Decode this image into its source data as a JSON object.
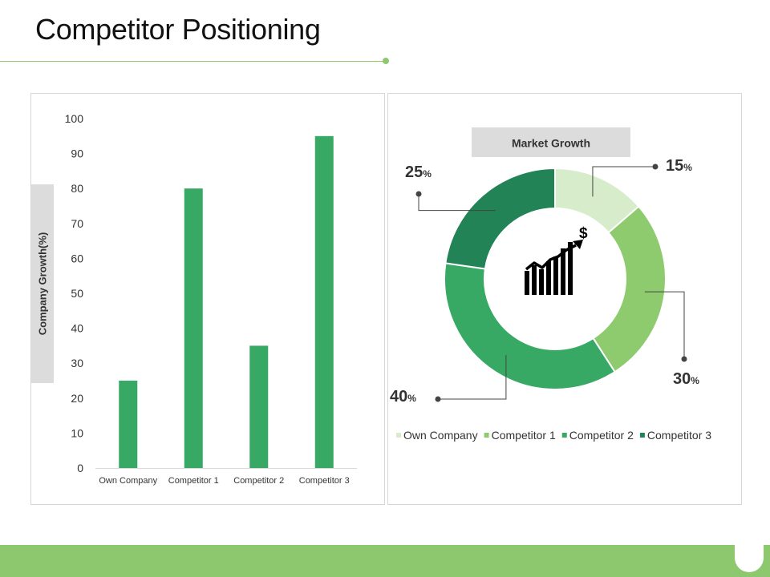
{
  "page": {
    "title": "Competitor Positioning"
  },
  "colors": {
    "accent": "#8dc86f",
    "bar": "#38a965",
    "band": "#dcdcdc"
  },
  "chart_data": [
    {
      "type": "bar",
      "categories": [
        "Own Company",
        "Competitor 1",
        "Competitor 2",
        "Competitor 3"
      ],
      "values": [
        25,
        80,
        35,
        95
      ],
      "title": "",
      "xlabel": "",
      "ylabel": "Company Growth(%)",
      "ylim": [
        0,
        100
      ],
      "yticks": [
        0,
        10,
        20,
        30,
        40,
        50,
        60,
        70,
        80,
        90,
        100
      ],
      "grid": false,
      "color": "#38a965"
    },
    {
      "type": "pie",
      "title": "Market Growth",
      "categories": [
        "Own Company",
        "Competitor 1",
        "Competitor 2",
        "Competitor 3"
      ],
      "values": [
        15,
        30,
        40,
        25
      ],
      "value_suffix": "%",
      "colors": [
        "#d6eccb",
        "#8dcb6e",
        "#38a965",
        "#228356"
      ],
      "center_icon": "growth-chart-dollar-icon",
      "legend_position": "bottom"
    }
  ]
}
